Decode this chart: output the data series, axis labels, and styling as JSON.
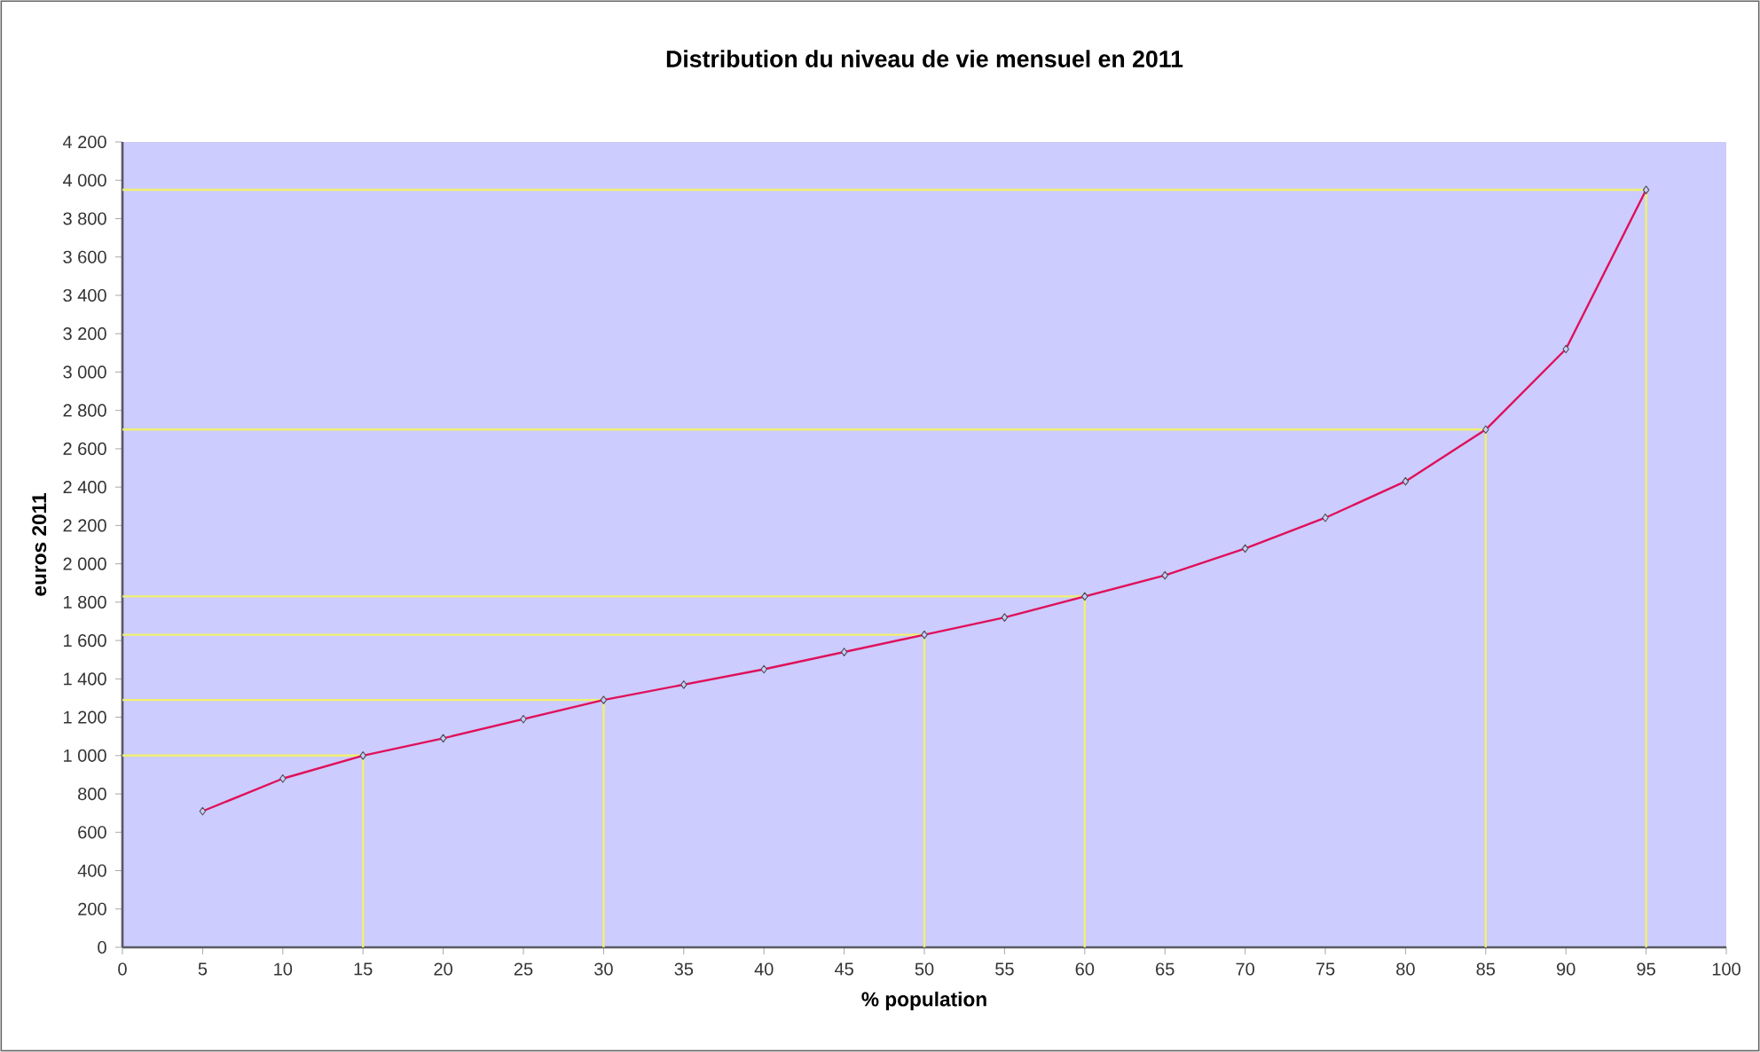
{
  "chart_data": {
    "type": "line",
    "title": "Distribution du niveau de vie mensuel en 2011",
    "xlabel": "% population",
    "ylabel": "euros 2011",
    "x": [
      5,
      10,
      15,
      20,
      25,
      30,
      35,
      40,
      45,
      50,
      55,
      60,
      65,
      70,
      75,
      80,
      85,
      90,
      95
    ],
    "series": [
      {
        "color": "#e0105a",
        "values": [
          710,
          880,
          1000,
          1090,
          1190,
          1290,
          1370,
          1450,
          1540,
          1630,
          1720,
          1830,
          1940,
          2080,
          2240,
          2430,
          2700,
          3120,
          3950
        ]
      },
      {
        "type": "line",
        "marker": "none",
        "color": "#f0f070",
        "x": [
          0,
          15,
          15
        ],
        "values": [
          1000,
          1000,
          0
        ]
      },
      {
        "type": "line",
        "marker": "none",
        "color": "#f0f070",
        "x": [
          0,
          30,
          30
        ],
        "values": [
          1290,
          1290,
          0
        ]
      },
      {
        "type": "line",
        "marker": "none",
        "color": "#f0f070",
        "x": [
          0,
          50,
          50
        ],
        "values": [
          1630,
          1630,
          0
        ]
      },
      {
        "type": "line",
        "marker": "none",
        "color": "#f0f070",
        "x": [
          0,
          60,
          60
        ],
        "values": [
          1830,
          1830,
          0
        ]
      },
      {
        "type": "line",
        "marker": "none",
        "color": "#f0f070",
        "x": [
          0,
          85,
          85
        ],
        "values": [
          2700,
          2700,
          0
        ]
      },
      {
        "type": "line",
        "marker": "none",
        "color": "#f0f070",
        "x": [
          0,
          95,
          95
        ],
        "values": [
          3950,
          3950,
          0
        ]
      }
    ],
    "marker": "diamond",
    "grid": false,
    "xlim": [
      0,
      100
    ],
    "xticks": [
      0,
      5,
      10,
      15,
      20,
      25,
      30,
      35,
      40,
      45,
      50,
      55,
      60,
      65,
      70,
      75,
      80,
      85,
      90,
      95,
      100
    ],
    "ylim": [
      0,
      4200
    ],
    "yticks": [
      0,
      200,
      400,
      600,
      800,
      {
        "value": 1000,
        "label": "1 000"
      },
      {
        "value": 1200,
        "label": "1 200"
      },
      {
        "value": 1400,
        "label": "1 400"
      },
      {
        "value": 1600,
        "label": "1 600"
      },
      {
        "value": 1800,
        "label": "1 800"
      },
      {
        "value": 2000,
        "label": "2 000"
      },
      {
        "value": 2200,
        "label": "2 200"
      },
      {
        "value": 2400,
        "label": "2 400"
      },
      {
        "value": 2600,
        "label": "2 600"
      },
      {
        "value": 2800,
        "label": "2 800"
      },
      {
        "value": 3000,
        "label": "3 000"
      },
      {
        "value": 3200,
        "label": "3 200"
      },
      {
        "value": 3400,
        "label": "3 400"
      },
      {
        "value": 3600,
        "label": "3 600"
      },
      {
        "value": 3800,
        "label": "3 800"
      },
      {
        "value": 4000,
        "label": "4 000"
      },
      {
        "value": 4200,
        "label": "4 200"
      }
    ]
  }
}
